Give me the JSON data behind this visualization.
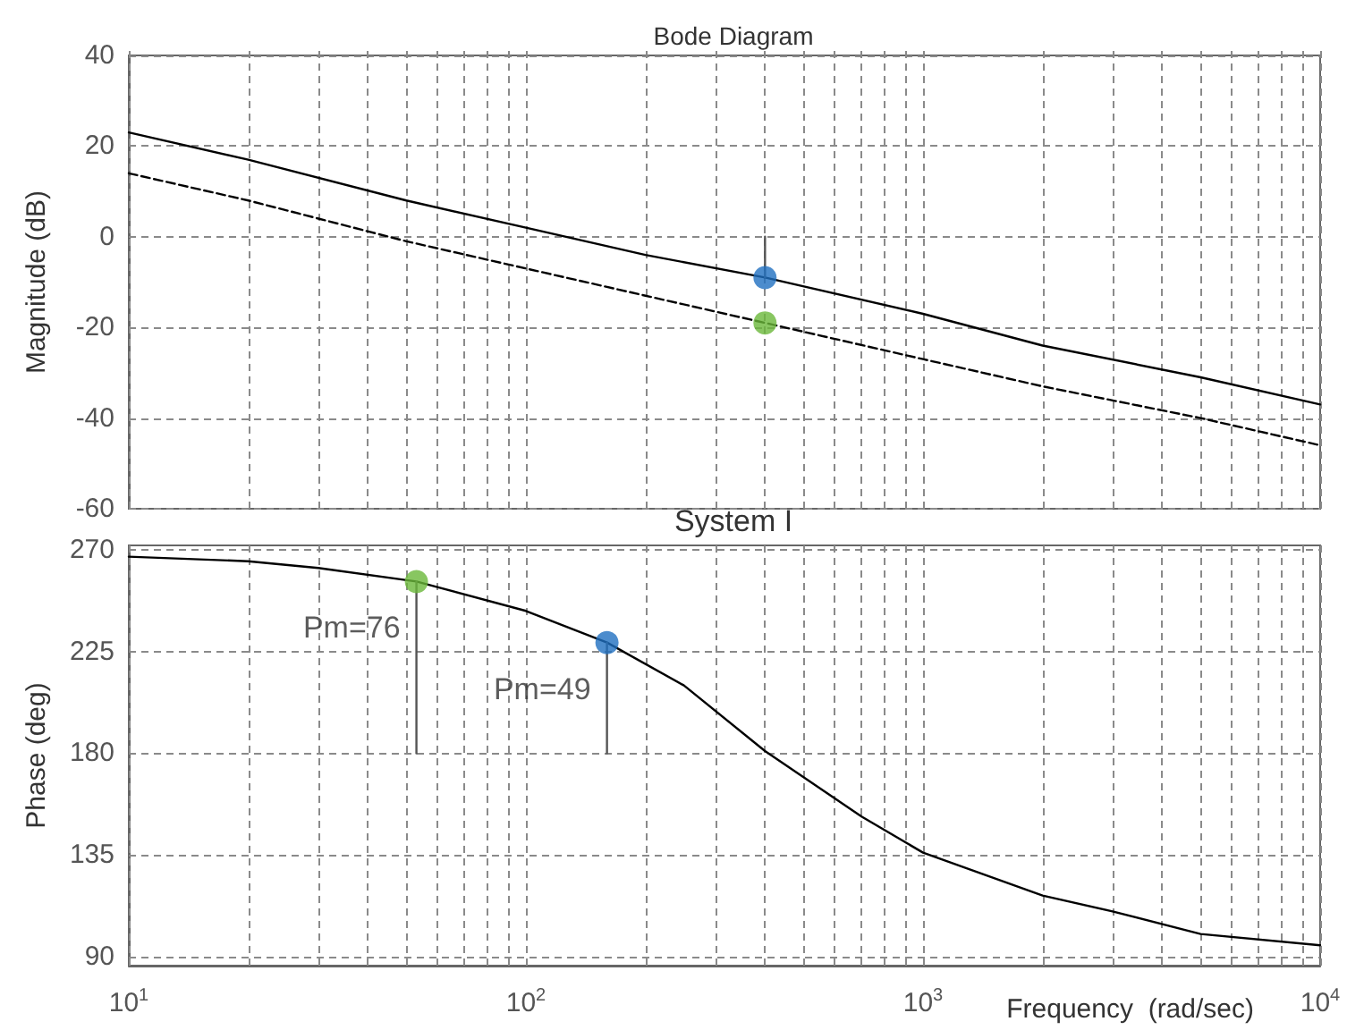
{
  "chart_data": [
    {
      "type": "line",
      "title": "Bode Diagram",
      "ylabel": "Magnitude (dB)",
      "log": "x",
      "grid": true,
      "tick_labels": "y",
      "xlim": [
        10,
        10000
      ],
      "xticks": [
        {
          "value": 10,
          "label": null
        },
        {
          "value": 20,
          "label": null
        },
        {
          "value": 30,
          "label": null
        },
        {
          "value": 40,
          "label": null
        },
        {
          "value": 50,
          "label": null
        },
        {
          "value": 60,
          "label": null
        },
        {
          "value": 70,
          "label": null
        },
        {
          "value": 80,
          "label": null
        },
        {
          "value": 90,
          "label": null
        },
        {
          "value": 100,
          "label": null
        },
        {
          "value": 200,
          "label": null
        },
        {
          "value": 300,
          "label": null
        },
        {
          "value": 400,
          "label": null
        },
        {
          "value": 500,
          "label": null
        },
        {
          "value": 600,
          "label": null
        },
        {
          "value": 700,
          "label": null
        },
        {
          "value": 800,
          "label": null
        },
        {
          "value": 900,
          "label": null
        },
        {
          "value": 1000,
          "label": null
        },
        {
          "value": 2000,
          "label": null
        },
        {
          "value": 3000,
          "label": null
        },
        {
          "value": 4000,
          "label": null
        },
        {
          "value": 5000,
          "label": null
        },
        {
          "value": 6000,
          "label": null
        },
        {
          "value": 7000,
          "label": null
        },
        {
          "value": 8000,
          "label": null
        },
        {
          "value": 9000,
          "label": null
        },
        {
          "value": 10000,
          "label": null
        }
      ],
      "ylim": [
        -60,
        40
      ],
      "yticks": [
        -60,
        -40,
        -20,
        0,
        20,
        40
      ],
      "series": [
        {
          "type": "line",
          "color": "#000000",
          "line_style": "solid",
          "marker": "none",
          "x": [
            10,
            20,
            50,
            100,
            200,
            400,
            1000,
            2000,
            5000,
            10000
          ],
          "values": [
            23,
            17,
            8,
            2,
            -4,
            -9,
            -17,
            -24,
            -31,
            -37
          ]
        },
        {
          "type": "line",
          "color": "#000000",
          "line_style": "dashed",
          "marker": "none",
          "x": [
            10,
            20,
            50,
            100,
            200,
            400,
            1000,
            2000,
            5000,
            10000
          ],
          "values": [
            14,
            8,
            -1,
            -7,
            -13,
            -19,
            -27,
            -33,
            -40,
            -46
          ]
        },
        {
          "type": "line",
          "color": "#555555",
          "line_style": "solid",
          "marker": "none",
          "x": [
            400,
            400
          ],
          "values": [
            0,
            -9
          ]
        },
        {
          "type": "scatter",
          "color": "#1f6fc0",
          "marker": "circle",
          "x": [
            400
          ],
          "values": [
            -9
          ]
        },
        {
          "type": "scatter",
          "color": "#6ab83a",
          "marker": "circle",
          "x": [
            400
          ],
          "values": [
            -19
          ]
        }
      ]
    },
    {
      "type": "line",
      "title": "System I",
      "xlabel": "Frequency  (rad/sec)",
      "ylabel": "Phase (deg)",
      "log": "x",
      "grid": true,
      "xlim": [
        10,
        10000
      ],
      "xticks": [
        {
          "value": 10,
          "label": "10$^{1}$"
        },
        {
          "value": 20,
          "label": null
        },
        {
          "value": 30,
          "label": null
        },
        {
          "value": 40,
          "label": null
        },
        {
          "value": 50,
          "label": null
        },
        {
          "value": 60,
          "label": null
        },
        {
          "value": 70,
          "label": null
        },
        {
          "value": 80,
          "label": null
        },
        {
          "value": 90,
          "label": null
        },
        {
          "value": 100,
          "label": "10$^{2}$"
        },
        {
          "value": 200,
          "label": null
        },
        {
          "value": 300,
          "label": null
        },
        {
          "value": 400,
          "label": null
        },
        {
          "value": 500,
          "label": null
        },
        {
          "value": 600,
          "label": null
        },
        {
          "value": 700,
          "label": null
        },
        {
          "value": 800,
          "label": null
        },
        {
          "value": 900,
          "label": null
        },
        {
          "value": 1000,
          "label": "10$^{3}$"
        },
        {
          "value": 2000,
          "label": null
        },
        {
          "value": 3000,
          "label": null
        },
        {
          "value": 4000,
          "label": null
        },
        {
          "value": 5000,
          "label": null
        },
        {
          "value": 6000,
          "label": null
        },
        {
          "value": 7000,
          "label": null
        },
        {
          "value": 8000,
          "label": null
        },
        {
          "value": 9000,
          "label": null
        },
        {
          "value": 10000,
          "label": "10$^{4}$"
        }
      ],
      "ylim": [
        86,
        272
      ],
      "yticks": [
        90,
        135,
        180,
        225,
        270
      ],
      "annotations": [
        {
          "text": "Pm=76",
          "x": 53,
          "y": 256
        },
        {
          "text": "Pm=49",
          "x": 160,
          "y": 229
        }
      ],
      "series": [
        {
          "type": "line",
          "color": "#000000",
          "line_style": "solid",
          "marker": "none",
          "x": [
            10,
            20,
            30,
            53,
            100,
            160,
            250,
            400,
            700,
            1000,
            2000,
            3000,
            5000,
            10000
          ],
          "values": [
            267,
            265,
            262,
            256,
            243,
            229,
            210,
            181,
            152,
            136,
            117,
            110,
            100,
            95
          ]
        },
        {
          "type": "line",
          "color": "#555555",
          "line_style": "solid",
          "marker": "none",
          "x": [
            53,
            53
          ],
          "values": [
            256,
            180
          ]
        },
        {
          "type": "line",
          "color": "#555555",
          "line_style": "solid",
          "marker": "none",
          "x": [
            160,
            160
          ],
          "values": [
            229,
            180
          ]
        },
        {
          "type": "scatter",
          "color": "#6ab83a",
          "marker": "circle",
          "x": [
            53
          ],
          "values": [
            256
          ]
        },
        {
          "type": "scatter",
          "color": "#1f6fc0",
          "marker": "circle",
          "x": [
            160
          ],
          "values": [
            229
          ]
        }
      ]
    }
  ]
}
